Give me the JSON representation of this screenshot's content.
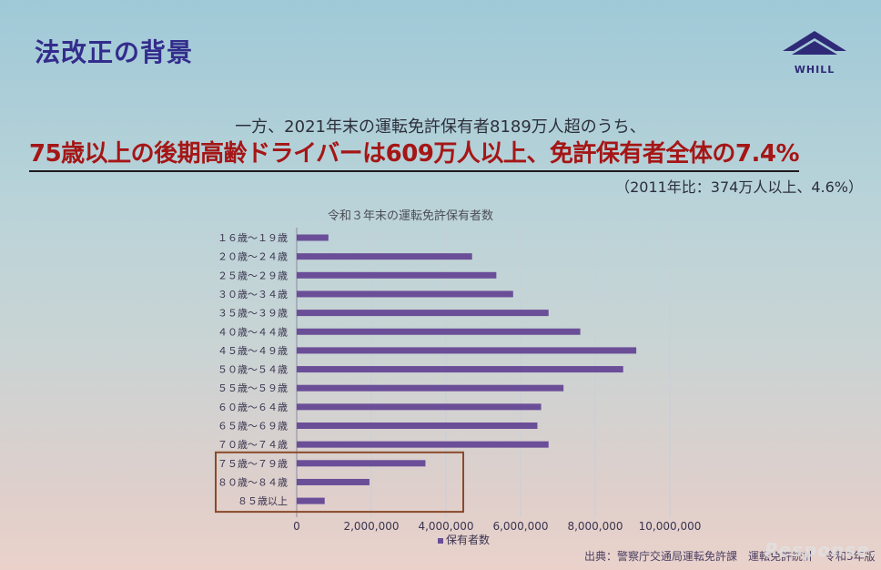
{
  "slide": {
    "title": "法改正の背景",
    "logo_text": "WHILL",
    "lead_line": "一方、2021年末の運転免許保有者8189万人超のうち、",
    "headline": "75歳以上の後期高齢ドライバーは609万人以上、免許保有者全体の7.4%",
    "compare_note": "（2011年比：374万人以上、4.6%）",
    "source_note": "出典：警察庁交通局運転免許課　運転免許統計　令和3年版",
    "watermark": "Response."
  },
  "colors": {
    "title": "#332c8c",
    "headline": "#a51616",
    "bar": "#6b4e98",
    "highlight_box": "#8a4a2a"
  },
  "chart_data": {
    "type": "bar",
    "orientation": "horizontal",
    "title": "令和３年末の運転免許保有者数",
    "categories": [
      "１６歳～１９歳",
      "２０歳～２４歳",
      "２５歳～２９歳",
      "３０歳～３４歳",
      "３５歳～３９歳",
      "４０歳～４４歳",
      "４５歳～４９歳",
      "５０歳～５４歳",
      "５５歳～５９歳",
      "６０歳～６４歳",
      "６５歳～６９歳",
      "７０歳～７４歳",
      "７５歳～７９歳",
      "８０歳～８４歳",
      "８５歳以上"
    ],
    "series": [
      {
        "name": "保有者数",
        "values": [
          850000,
          4700000,
          5350000,
          5800000,
          6750000,
          7600000,
          9100000,
          8750000,
          7150000,
          6550000,
          6450000,
          6750000,
          3450000,
          1950000,
          750000
        ]
      }
    ],
    "xlim": [
      0,
      10000000
    ],
    "x_ticks": [
      "0",
      "2,000,000",
      "4,000,000",
      "6,000,000",
      "8,000,000",
      "10,000,000"
    ],
    "grid": true,
    "legend": "bottom",
    "highlight_categories": [
      "７５歳～７９歳",
      "８０歳～８４歳",
      "８５歳以上"
    ]
  }
}
